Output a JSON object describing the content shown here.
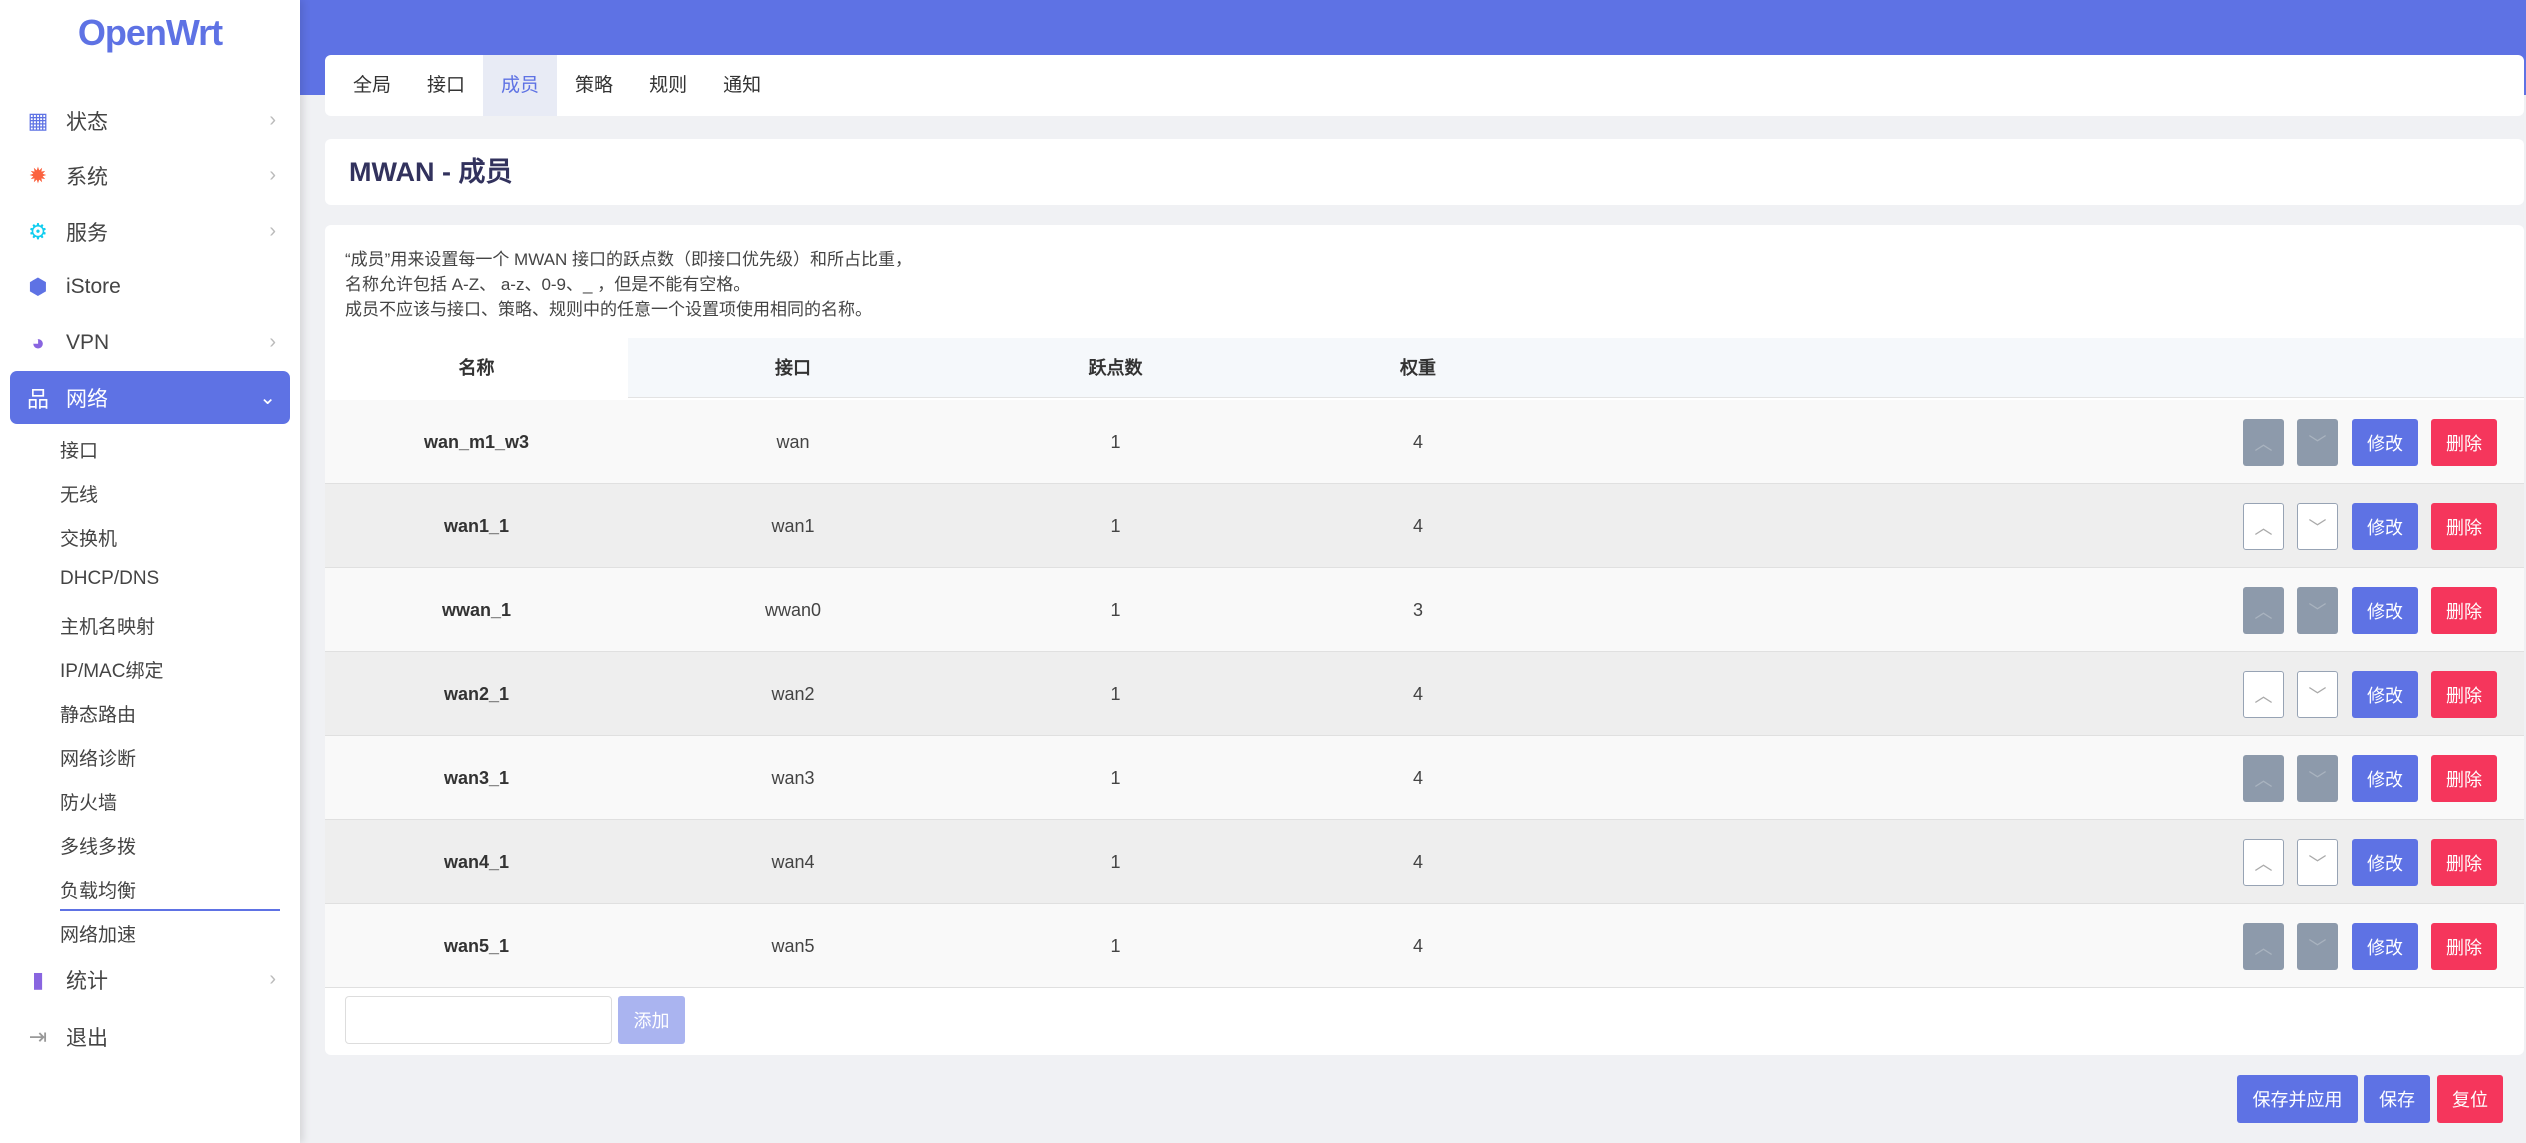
{
  "brand": "OpenWrt",
  "sidebar": {
    "items": [
      {
        "label": "状态",
        "icon": "dashboard-icon",
        "color": "#5e72e4",
        "chevron": true
      },
      {
        "label": "系统",
        "icon": "gear-icon",
        "color": "#fb6340",
        "chevron": true
      },
      {
        "label": "服务",
        "icon": "gears-icon",
        "color": "#11cdef",
        "chevron": true
      },
      {
        "label": "iStore",
        "icon": "cube-icon",
        "color": "#5e72e4",
        "chevron": false
      },
      {
        "label": "VPN",
        "icon": "globe-lock-icon",
        "color": "#8965e0",
        "chevron": true
      },
      {
        "label": "网络",
        "icon": "network-icon",
        "color": "#ffffff",
        "chevron": true,
        "active": true
      },
      {
        "label": "统计",
        "icon": "bar-chart-icon",
        "color": "#8965e0",
        "chevron": true
      },
      {
        "label": "退出",
        "icon": "logout-icon",
        "color": "#999999",
        "chevron": false
      }
    ],
    "subitems": [
      "接口",
      "无线",
      "交换机",
      "DHCP/DNS",
      "主机名映射",
      "IP/MAC绑定",
      "静态路由",
      "网络诊断",
      "防火墙",
      "多线多拨",
      "负载均衡",
      "网络加速"
    ],
    "current_sub": "负载均衡"
  },
  "tabs": [
    "全局",
    "接口",
    "成员",
    "策略",
    "规则",
    "通知"
  ],
  "active_tab": "成员",
  "title": "MWAN - 成员",
  "description": [
    "“成员”用来设置每一个 MWAN 接口的跃点数（即接口优先级）和所占比重，",
    "名称允许包括 A-Z、 a-z、0-9、_ ，但是不能有空格。",
    "成员不应该与接口、策略、规则中的任意一个设置项使用相同的名称。"
  ],
  "table": {
    "headers": [
      "名称",
      "接口",
      "跃点数",
      "权重"
    ],
    "rows": [
      {
        "name": "wan_m1_w3",
        "iface": "wan",
        "metric": "1",
        "weight": "4"
      },
      {
        "name": "wan1_1",
        "iface": "wan1",
        "metric": "1",
        "weight": "4"
      },
      {
        "name": "wwan_1",
        "iface": "wwan0",
        "metric": "1",
        "weight": "3"
      },
      {
        "name": "wan2_1",
        "iface": "wan2",
        "metric": "1",
        "weight": "4"
      },
      {
        "name": "wan3_1",
        "iface": "wan3",
        "metric": "1",
        "weight": "4"
      },
      {
        "name": "wan4_1",
        "iface": "wan4",
        "metric": "1",
        "weight": "4"
      },
      {
        "name": "wan5_1",
        "iface": "wan5",
        "metric": "1",
        "weight": "4"
      }
    ],
    "edit_label": "修改",
    "delete_label": "删除"
  },
  "add": {
    "value": "",
    "label": "添加"
  },
  "footer": {
    "save_apply": "保存并应用",
    "save": "保存",
    "reset": "复位"
  },
  "colors": {
    "accent": "#5e72e4",
    "danger": "#f5365c"
  }
}
